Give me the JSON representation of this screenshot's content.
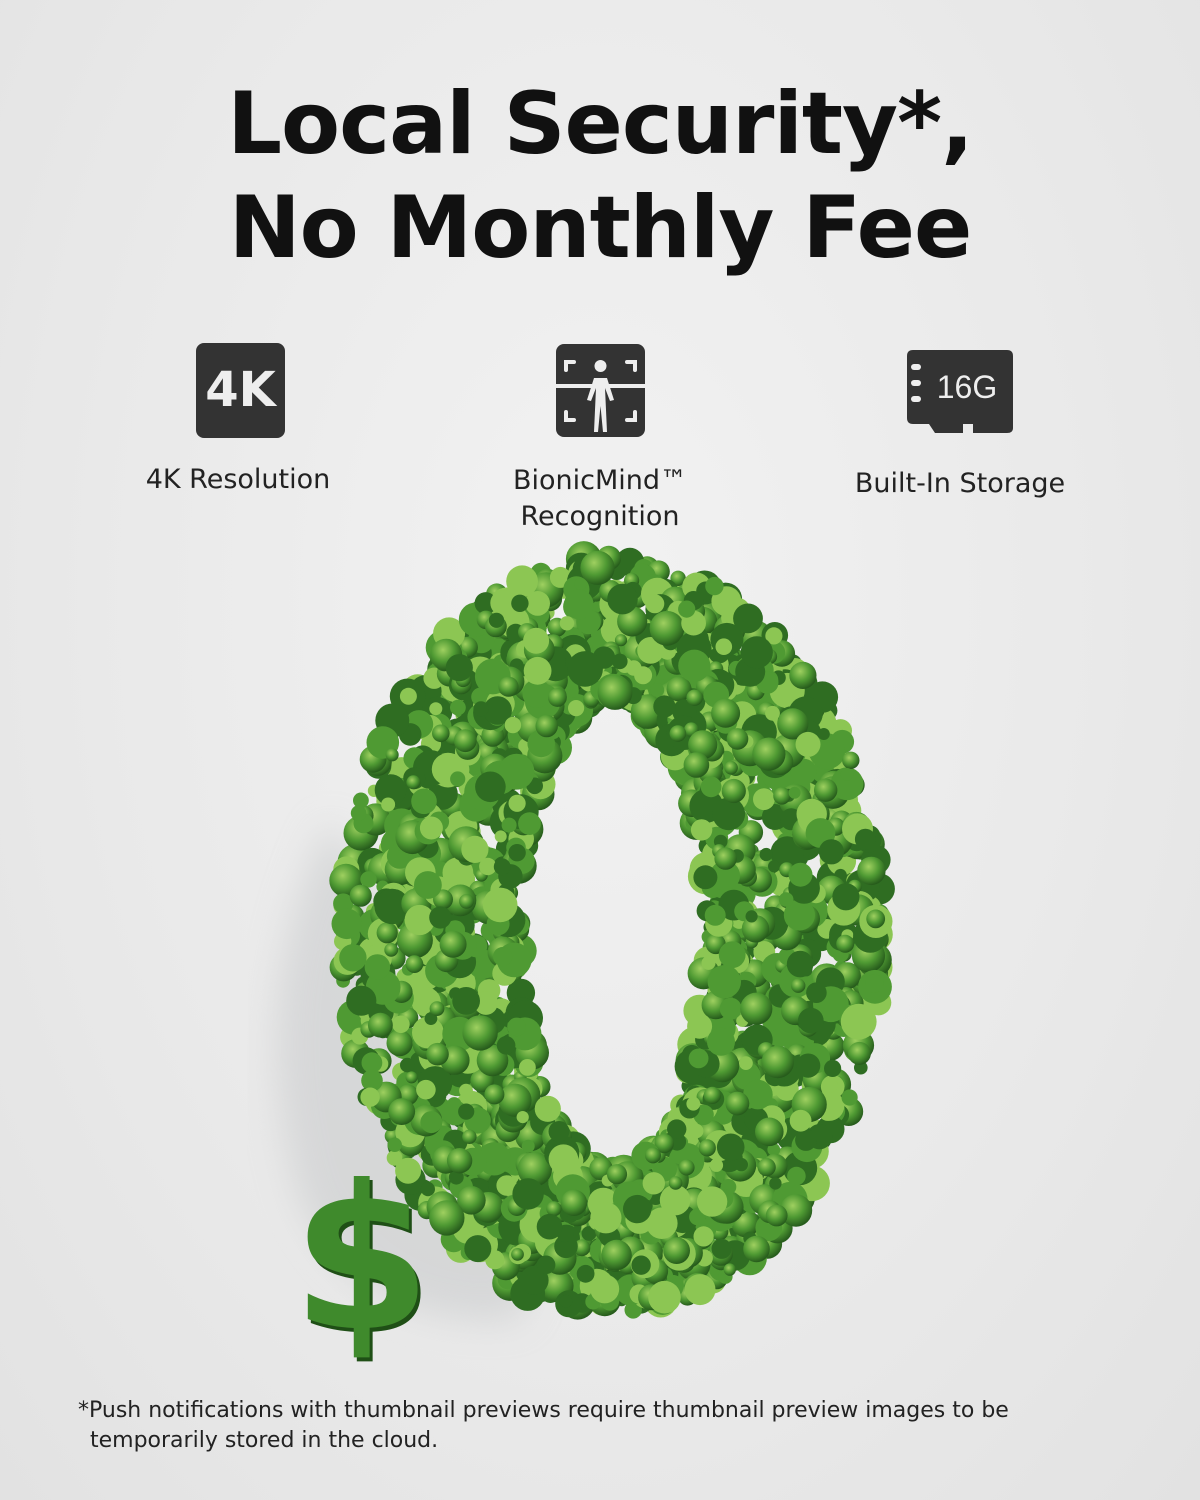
{
  "headline": {
    "line1": "Local Security*,",
    "line2": "No Monthly Fee"
  },
  "features": [
    {
      "icon": "4k-icon",
      "icon_text": "4K",
      "label": "4K Resolution"
    },
    {
      "icon": "person-recognition-icon",
      "label_line1": "BionicMind™",
      "label_line2": "Recognition"
    },
    {
      "icon": "sd-card-icon",
      "icon_text": "16G",
      "label": "Built-In Storage"
    }
  ],
  "hero": {
    "currency": "$",
    "colors": {
      "foliage_dark": "#2f6d22",
      "foliage": "#4f9a33",
      "foliage_light": "#8cc653"
    }
  },
  "footnote": {
    "line1": "*Push notifications with thumbnail previews require thumbnail preview images to be",
    "line2": "temporarily stored in the cloud."
  }
}
